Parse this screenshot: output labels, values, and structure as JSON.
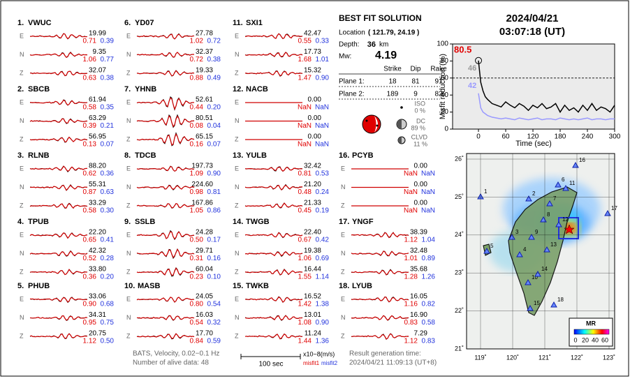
{
  "stations": [
    {
      "label": "1.",
      "name": "VWUC",
      "components": [
        {
          "comp": "E",
          "amp": "19.99",
          "misfit1": "0.71",
          "misfit2": "0.39"
        },
        {
          "comp": "N",
          "amp": "9.35",
          "misfit1": "1.06",
          "misfit2": "0.77"
        },
        {
          "comp": "Z",
          "amp": "32.07",
          "misfit1": "0.63",
          "misfit2": "0.38"
        }
      ]
    },
    {
      "label": "2.",
      "name": "SBCB",
      "components": [
        {
          "comp": "E",
          "amp": "61.94",
          "misfit1": "0.58",
          "misfit2": "0.35"
        },
        {
          "comp": "N",
          "amp": "63.29",
          "misfit1": "0.39",
          "misfit2": "0.21"
        },
        {
          "comp": "Z",
          "amp": "56.95",
          "misfit1": "0.13",
          "misfit2": "0.07"
        }
      ]
    },
    {
      "label": "3.",
      "name": "RLNB",
      "components": [
        {
          "comp": "E",
          "amp": "88.20",
          "misfit1": "0.62",
          "misfit2": "0.36"
        },
        {
          "comp": "N",
          "amp": "55.31",
          "misfit1": "0.87",
          "misfit2": "0.63"
        },
        {
          "comp": "Z",
          "amp": "33.29",
          "misfit1": "0.58",
          "misfit2": "0.30"
        }
      ]
    },
    {
      "label": "4.",
      "name": "TPUB",
      "components": [
        {
          "comp": "E",
          "amp": "22.20",
          "misfit1": "0.65",
          "misfit2": "0.41"
        },
        {
          "comp": "N",
          "amp": "42.32",
          "misfit1": "0.52",
          "misfit2": "0.28"
        },
        {
          "comp": "Z",
          "amp": "33.80",
          "misfit1": "0.36",
          "misfit2": "0.20"
        }
      ]
    },
    {
      "label": "5.",
      "name": "PHUB",
      "components": [
        {
          "comp": "E",
          "amp": "33.06",
          "misfit1": "0.90",
          "misfit2": "0.68"
        },
        {
          "comp": "N",
          "amp": "34.31",
          "misfit1": "0.95",
          "misfit2": "0.75"
        },
        {
          "comp": "Z",
          "amp": "20.75",
          "misfit1": "1.12",
          "misfit2": "0.50"
        }
      ]
    },
    {
      "label": "6.",
      "name": "YD07",
      "components": [
        {
          "comp": "E",
          "amp": "27.78",
          "misfit1": "1.02",
          "misfit2": "0.72"
        },
        {
          "comp": "N",
          "amp": "32.37",
          "misfit1": "0.72",
          "misfit2": "0.38"
        },
        {
          "comp": "Z",
          "amp": "19.33",
          "misfit1": "0.88",
          "misfit2": "0.49"
        }
      ]
    },
    {
      "label": "7.",
      "name": "YHNB",
      "components": [
        {
          "comp": "E",
          "amp": "52.61",
          "misfit1": "0.44",
          "misfit2": "0.20"
        },
        {
          "comp": "N",
          "amp": "80.51",
          "misfit1": "0.08",
          "misfit2": "0.04"
        },
        {
          "comp": "Z",
          "amp": "65.15",
          "misfit1": "0.16",
          "misfit2": "0.07"
        }
      ]
    },
    {
      "label": "8.",
      "name": "TDCB",
      "components": [
        {
          "comp": "E",
          "amp": "197.73",
          "misfit1": "1.09",
          "misfit2": "0.90"
        },
        {
          "comp": "N",
          "amp": "224.60",
          "misfit1": "0.98",
          "misfit2": "0.81"
        },
        {
          "comp": "Z",
          "amp": "167.86",
          "misfit1": "1.05",
          "misfit2": "0.86"
        }
      ]
    },
    {
      "label": "9.",
      "name": "SSLB",
      "components": [
        {
          "comp": "E",
          "amp": "24.28",
          "misfit1": "0.50",
          "misfit2": "0.17"
        },
        {
          "comp": "N",
          "amp": "29.71",
          "misfit1": "0.31",
          "misfit2": "0.16"
        },
        {
          "comp": "Z",
          "amp": "60.04",
          "misfit1": "0.23",
          "misfit2": "0.10"
        }
      ]
    },
    {
      "label": "10.",
      "name": "MASB",
      "components": [
        {
          "comp": "E",
          "amp": "24.05",
          "misfit1": "0.80",
          "misfit2": "0.54"
        },
        {
          "comp": "N",
          "amp": "16.03",
          "misfit1": "0.54",
          "misfit2": "0.32"
        },
        {
          "comp": "Z",
          "amp": "17.70",
          "misfit1": "0.84",
          "misfit2": "0.59"
        }
      ]
    },
    {
      "label": "11.",
      "name": "SXI1",
      "components": [
        {
          "comp": "E",
          "amp": "42.47",
          "misfit1": "0.55",
          "misfit2": "0.33"
        },
        {
          "comp": "N",
          "amp": "17.73",
          "misfit1": "1.68",
          "misfit2": "1.01"
        },
        {
          "comp": "Z",
          "amp": "15.32",
          "misfit1": "1.47",
          "misfit2": "0.90"
        }
      ]
    },
    {
      "label": "12.",
      "name": "NACB",
      "components": [
        {
          "comp": "E",
          "amp": "0.00",
          "misfit1": "NaN",
          "misfit2": "NaN"
        },
        {
          "comp": "N",
          "amp": "0.00",
          "misfit1": "NaN",
          "misfit2": "NaN"
        },
        {
          "comp": "Z",
          "amp": "0.00",
          "misfit1": "NaN",
          "misfit2": "NaN"
        }
      ]
    },
    {
      "label": "13.",
      "name": "YULB",
      "components": [
        {
          "comp": "E",
          "amp": "32.42",
          "misfit1": "0.81",
          "misfit2": "0.53"
        },
        {
          "comp": "N",
          "amp": "21.20",
          "misfit1": "0.48",
          "misfit2": "0.24"
        },
        {
          "comp": "Z",
          "amp": "21.33",
          "misfit1": "0.45",
          "misfit2": "0.19"
        }
      ]
    },
    {
      "label": "14.",
      "name": "TWGB",
      "components": [
        {
          "comp": "E",
          "amp": "22.40",
          "misfit1": "0.67",
          "misfit2": "0.42"
        },
        {
          "comp": "N",
          "amp": "19.38",
          "misfit1": "1.06",
          "misfit2": "0.69"
        },
        {
          "comp": "Z",
          "amp": "16.44",
          "misfit1": "1.55",
          "misfit2": "1.14"
        }
      ]
    },
    {
      "label": "15.",
      "name": "TWKB",
      "components": [
        {
          "comp": "E",
          "amp": "16.52",
          "misfit1": "1.42",
          "misfit2": "1.38"
        },
        {
          "comp": "N",
          "amp": "13.01",
          "misfit1": "1.08",
          "misfit2": "0.90"
        },
        {
          "comp": "Z",
          "amp": "11.24",
          "misfit1": "1.44",
          "misfit2": "1.36"
        }
      ]
    },
    {
      "label": "16.",
      "name": "PCYB",
      "components": [
        {
          "comp": "E",
          "amp": "0.00",
          "misfit1": "NaN",
          "misfit2": "NaN"
        },
        {
          "comp": "N",
          "amp": "0.00",
          "misfit1": "NaN",
          "misfit2": "NaN"
        },
        {
          "comp": "Z",
          "amp": "0.00",
          "misfit1": "NaN",
          "misfit2": "NaN"
        }
      ]
    },
    {
      "label": "17.",
      "name": "YNGF",
      "components": [
        {
          "comp": "E",
          "amp": "38.39",
          "misfit1": "1.12",
          "misfit2": "1.04"
        },
        {
          "comp": "N",
          "amp": "32.48",
          "misfit1": "1.01",
          "misfit2": "0.89"
        },
        {
          "comp": "Z",
          "amp": "35.68",
          "misfit1": "1.28",
          "misfit2": "1.26"
        }
      ]
    },
    {
      "label": "18.",
      "name": "LYUB",
      "components": [
        {
          "comp": "E",
          "amp": "16.05",
          "misfit1": "1.16",
          "misfit2": "0.82"
        },
        {
          "comp": "N",
          "amp": "16.90",
          "misfit1": "0.83",
          "misfit2": "0.58"
        },
        {
          "comp": "Z",
          "amp": "7.29",
          "misfit1": "1.12",
          "misfit2": "0.83"
        }
      ]
    }
  ],
  "solution": {
    "title": "BEST FIT SOLUTION",
    "location_label": "Location",
    "location": "( 121.79, 24.19 )",
    "depth_label": "Depth:",
    "depth": "36",
    "depth_unit": "km",
    "mw_label": "Mw:",
    "mw": "4.19",
    "columns": [
      "Strike",
      "Dip",
      "Rake"
    ],
    "planes": [
      {
        "label": "Plane 1:",
        "values": [
          "18",
          "81",
          "91"
        ]
      },
      {
        "label": "Plane 2:",
        "values": [
          "189",
          "9",
          "82"
        ]
      }
    ],
    "iso_label": "ISO",
    "iso": "0 %",
    "dc_label": "DC",
    "dc": "89 %",
    "clvd_label": "CLVD",
    "clvd": "11 %"
  },
  "origin": {
    "date": "2024/04/21",
    "time": "03:07:18  (UT)"
  },
  "chart_data": {
    "type": "line",
    "ylabel": "Misfit reduction (%)",
    "xlabel": "Time (sec)",
    "x": [
      0,
      5,
      10,
      15,
      20,
      30,
      40,
      50,
      60,
      70,
      80,
      90,
      100,
      110,
      120,
      130,
      140,
      150,
      160,
      170,
      180,
      190,
      200,
      210,
      220,
      230,
      240,
      250,
      260,
      270,
      280,
      290,
      300
    ],
    "series": [
      {
        "color": "#000000",
        "values": [
          80.5,
          55,
          45,
          38,
          35,
          30,
          28,
          26,
          32,
          28,
          25,
          30,
          27,
          22,
          28,
          25,
          30,
          24,
          26,
          30,
          20,
          28,
          22,
          25,
          20,
          28,
          22,
          30,
          22,
          26,
          24,
          20,
          28
        ]
      },
      {
        "color": "#9999ff",
        "values": [
          42,
          25,
          20,
          18,
          16,
          14,
          13,
          12,
          13,
          12,
          11,
          13,
          12,
          11,
          12,
          13,
          11,
          12,
          12,
          11,
          13,
          12,
          11,
          12,
          11,
          12,
          13,
          11,
          12,
          12,
          11,
          12,
          12
        ]
      }
    ],
    "annotations": [
      {
        "text": "80.5",
        "color": "#e00000"
      },
      {
        "text": "46",
        "color": "#999999"
      },
      {
        "text": "42",
        "color": "#9999ff"
      }
    ],
    "reference_line": 60,
    "xlim": [
      -57,
      300
    ],
    "ylim": [
      0,
      100
    ],
    "xticks": [
      0,
      60,
      120,
      180,
      240,
      300
    ],
    "yticks": [
      0,
      20,
      40,
      60,
      80,
      100
    ]
  },
  "map": {
    "lon_ticks": [
      "119˚",
      "120˚",
      "121˚",
      "122˚",
      "123˚"
    ],
    "lat_ticks": [
      "21˚",
      "22˚",
      "23˚",
      "24˚",
      "25˚",
      "26˚"
    ],
    "station_labels": [
      "1",
      "2",
      "3",
      "4",
      "5",
      "6",
      "7",
      "8",
      "9",
      "10",
      "11",
      "12",
      "13",
      "14",
      "15",
      "16",
      "17",
      "18"
    ],
    "colorbar_title": "MR",
    "colorbar_ticks": [
      "0",
      "20",
      "40",
      "60"
    ]
  },
  "footer": {
    "network": "BATS, Velocity, 0.02−0.1 Hz",
    "alive": "Number of alive data: 48",
    "scale": "100 sec",
    "units": "x10−8(m/s)",
    "misfit1": "misfit1",
    "misfit2": "misfit2",
    "result_label": "Result generation time:",
    "result_time": "2024/04/21 11:09:13 (UT+8)"
  }
}
